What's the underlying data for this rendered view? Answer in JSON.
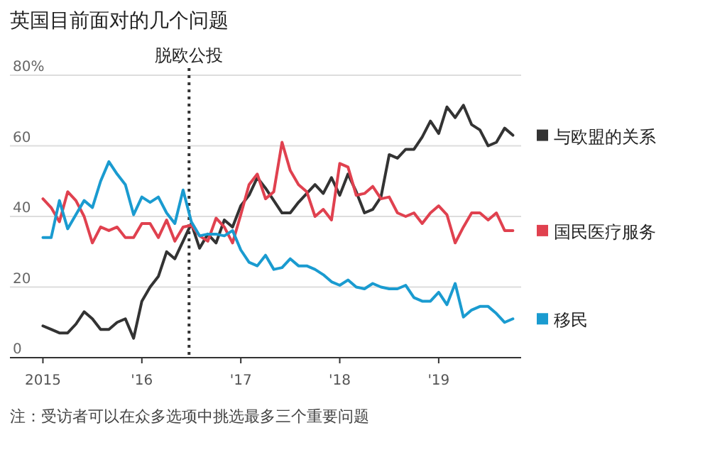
{
  "chart_data": {
    "type": "line",
    "title": "英国目前面对的几个问题",
    "x": [
      "2015-01",
      "2015-02",
      "2015-03",
      "2015-04",
      "2015-05",
      "2015-06",
      "2015-07",
      "2015-08",
      "2015-09",
      "2015-10",
      "2015-11",
      "2015-12",
      "2016-01",
      "2016-02",
      "2016-03",
      "2016-04",
      "2016-05",
      "2016-06",
      "2016-07",
      "2016-08",
      "2016-09",
      "2016-10",
      "2016-11",
      "2016-12",
      "2017-01",
      "2017-02",
      "2017-03",
      "2017-04",
      "2017-05",
      "2017-06",
      "2017-07",
      "2017-08",
      "2017-09",
      "2017-10",
      "2017-11",
      "2017-12",
      "2018-01",
      "2018-02",
      "2018-03",
      "2018-04",
      "2018-05",
      "2018-06",
      "2018-07",
      "2018-08",
      "2018-09",
      "2018-10",
      "2018-11",
      "2018-12",
      "2019-01",
      "2019-02",
      "2019-03",
      "2019-04",
      "2019-05",
      "2019-06",
      "2019-07",
      "2019-08",
      "2019-09",
      "2019-10"
    ],
    "series": [
      {
        "name": "与欧盟的关系",
        "color": "#333333",
        "values": [
          9,
          8,
          7,
          7,
          9.5,
          13,
          11,
          8,
          8,
          10,
          11,
          5.5,
          16,
          20,
          23,
          30,
          28,
          33,
          38,
          31,
          35,
          32.5,
          39,
          37,
          43,
          46,
          51,
          48,
          44.5,
          41,
          41,
          44,
          46.5,
          49,
          46.5,
          51,
          46,
          52,
          47,
          41,
          42,
          45.5,
          57.5,
          56.5,
          59,
          59,
          62.5,
          67,
          63.5,
          71,
          68,
          71.5,
          66,
          64.5,
          60,
          61,
          65,
          63
        ]
      },
      {
        "name": "国民医疗服务",
        "color": "#e0414f",
        "values": [
          45,
          42.5,
          38.5,
          47,
          44.5,
          40,
          32.5,
          37,
          36,
          37,
          34,
          34,
          38,
          38,
          34,
          39,
          33,
          37,
          37.5,
          34.5,
          33,
          39.5,
          37,
          32.5,
          40.5,
          49,
          52,
          45,
          47,
          61,
          53,
          49,
          47,
          40,
          42,
          39,
          55,
          54,
          46,
          46.5,
          48.5,
          45,
          45.5,
          41,
          40,
          41,
          38,
          41,
          43,
          40.5,
          32.5,
          37,
          41,
          41,
          39,
          41,
          36,
          36
        ]
      },
      {
        "name": "移民",
        "color": "#1a9bd0",
        "values": [
          34,
          34,
          44.5,
          36.5,
          40.5,
          44.5,
          42.5,
          50,
          55.5,
          52,
          49,
          40.5,
          45.5,
          44,
          45.5,
          41,
          38,
          47.5,
          38.5,
          34.5,
          35,
          35,
          34.5,
          36,
          30.5,
          27,
          26,
          29,
          25,
          25.5,
          28,
          26,
          26,
          25,
          23.5,
          21.5,
          20.5,
          22,
          20,
          19.5,
          21,
          20,
          19.5,
          19.5,
          20.5,
          17,
          16,
          16,
          18.5,
          15,
          21,
          11.5,
          13.5,
          14.5,
          14.5,
          12.5,
          10,
          11
        ]
      }
    ],
    "xlim": [
      "2014-09",
      "2019-11"
    ],
    "xticks": [
      {
        "value": "2015-01",
        "label": "2015"
      },
      {
        "value": "2016-01",
        "label": "'16"
      },
      {
        "value": "2017-01",
        "label": "'17"
      },
      {
        "value": "2018-01",
        "label": "'18"
      },
      {
        "value": "2019-01",
        "label": "'19"
      }
    ],
    "ylim": [
      0,
      80
    ],
    "yticks": [
      0,
      20,
      40,
      60,
      {
        "value": 80,
        "label": "80%"
      }
    ],
    "grid": "y",
    "legend": "right",
    "ref_lines": [
      {
        "axis": "x",
        "value": "2016-06-23",
        "label": "脱欧公投",
        "color": "#333333",
        "line_style": "dotted"
      }
    ],
    "annotations": [
      "注：受访者可以在众多选项中挑选最多三个重要问题"
    ]
  }
}
